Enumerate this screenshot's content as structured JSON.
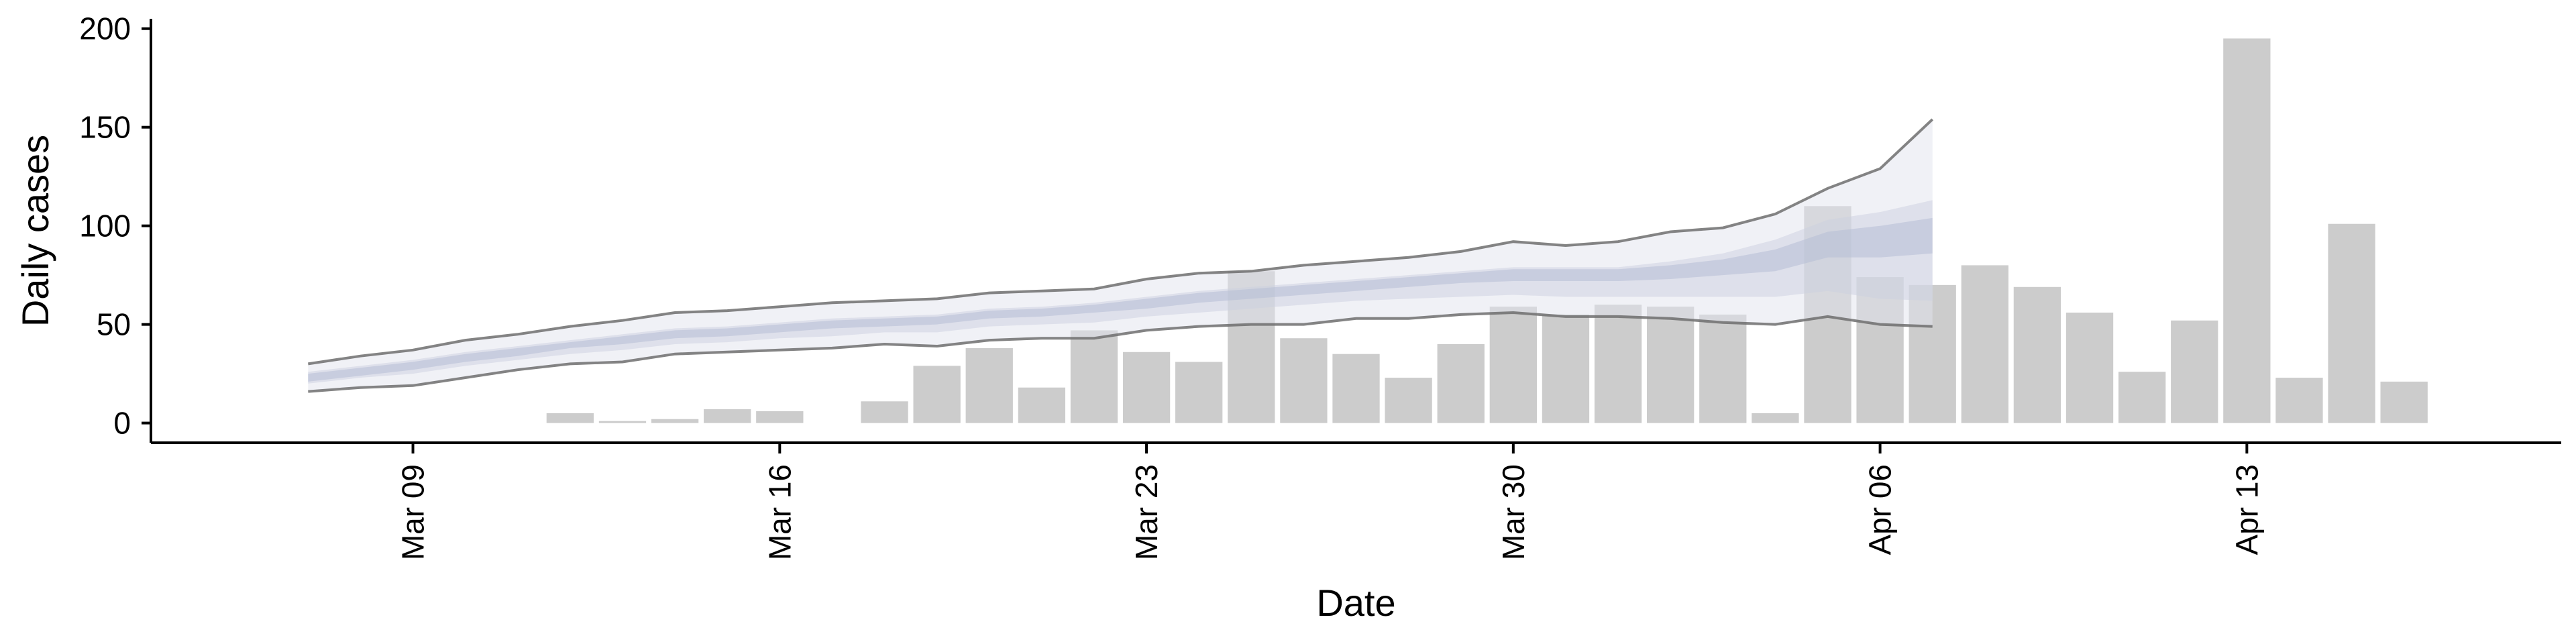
{
  "chart_data": {
    "type": "bar",
    "xlabel": "Date",
    "ylabel": "Daily cases",
    "ylim": [
      -10,
      205
    ],
    "xlim": [
      "2020-03-04",
      "2020-04-19"
    ],
    "y_ticks": [
      0,
      50,
      100,
      150,
      200
    ],
    "x_ticks": [
      {
        "date": "2020-03-09",
        "label": "Mar 09"
      },
      {
        "date": "2020-03-16",
        "label": "Mar 16"
      },
      {
        "date": "2020-03-23",
        "label": "Mar 23"
      },
      {
        "date": "2020-03-30",
        "label": "Mar 30"
      },
      {
        "date": "2020-04-06",
        "label": "Apr 06"
      },
      {
        "date": "2020-04-13",
        "label": "Apr 13"
      }
    ],
    "grid": false,
    "legend": "none",
    "colors": {
      "bars": "#cccccc",
      "band_outer": "#e2e4ee",
      "band_mid": "#ccd0e0",
      "band_inner": "#b7bdd6",
      "bound_line": "#6e6e6e"
    },
    "series": [
      {
        "type": "bar",
        "x": [
          "2020-03-12",
          "2020-03-13",
          "2020-03-14",
          "2020-03-15",
          "2020-03-16",
          "2020-03-18",
          "2020-03-19",
          "2020-03-20",
          "2020-03-21",
          "2020-03-22",
          "2020-03-23",
          "2020-03-24",
          "2020-03-25",
          "2020-03-26",
          "2020-03-27",
          "2020-03-28",
          "2020-03-29",
          "2020-03-30",
          "2020-03-31",
          "2020-04-01",
          "2020-04-02",
          "2020-04-03",
          "2020-04-04",
          "2020-04-05",
          "2020-04-06",
          "2020-04-07",
          "2020-04-08",
          "2020-04-09",
          "2020-04-10",
          "2020-04-11",
          "2020-04-12",
          "2020-04-13",
          "2020-04-14",
          "2020-04-15",
          "2020-04-16"
        ],
        "values": [
          5,
          1,
          2,
          7,
          6,
          11,
          29,
          38,
          18,
          47,
          36,
          31,
          77,
          43,
          35,
          23,
          40,
          59,
          55,
          60,
          59,
          55,
          5,
          110,
          74,
          70,
          80,
          69,
          56,
          26,
          52,
          195,
          23,
          101,
          21
        ]
      },
      {
        "type": "band",
        "x": [
          "2020-03-07",
          "2020-03-08",
          "2020-03-09",
          "2020-03-10",
          "2020-03-11",
          "2020-03-12",
          "2020-03-13",
          "2020-03-14",
          "2020-03-15",
          "2020-03-16",
          "2020-03-17",
          "2020-03-18",
          "2020-03-19",
          "2020-03-20",
          "2020-03-21",
          "2020-03-22",
          "2020-03-23",
          "2020-03-24",
          "2020-03-25",
          "2020-03-26",
          "2020-03-27",
          "2020-03-28",
          "2020-03-29",
          "2020-03-30",
          "2020-03-31",
          "2020-04-01",
          "2020-04-02",
          "2020-04-03",
          "2020-04-04",
          "2020-04-05",
          "2020-04-06",
          "2020-04-07"
        ],
        "lower95": [
          16,
          18,
          19,
          23,
          27,
          30,
          31,
          35,
          36,
          37,
          38,
          40,
          39,
          42,
          43,
          43,
          47,
          49,
          50,
          50,
          53,
          53,
          55,
          56,
          54,
          54,
          53,
          51,
          50,
          54,
          50,
          49
        ],
        "upper95": [
          30,
          34,
          37,
          42,
          45,
          49,
          52,
          56,
          57,
          59,
          61,
          62,
          63,
          66,
          67,
          68,
          73,
          76,
          77,
          80,
          82,
          84,
          87,
          92,
          90,
          92,
          97,
          99,
          106,
          119,
          129,
          154
        ],
        "lower50": [
          20,
          23,
          25,
          29,
          32,
          35,
          37,
          40,
          41,
          43,
          44,
          46,
          46,
          49,
          50,
          51,
          54,
          56,
          58,
          60,
          62,
          63,
          64,
          65,
          64,
          64,
          64,
          64,
          64,
          67,
          63,
          62
        ],
        "upper50": [
          26,
          29,
          32,
          36,
          39,
          42,
          45,
          48,
          49,
          51,
          53,
          54,
          55,
          58,
          59,
          61,
          64,
          67,
          69,
          71,
          73,
          75,
          77,
          79,
          79,
          79,
          82,
          86,
          93,
          103,
          107,
          113
        ],
        "lower20": [
          21,
          24,
          27,
          31,
          34,
          38,
          40,
          43,
          44,
          46,
          48,
          49,
          50,
          53,
          54,
          56,
          58,
          61,
          63,
          65,
          67,
          69,
          71,
          72,
          72,
          72,
          73,
          75,
          77,
          84,
          84,
          86
        ],
        "upper20": [
          25,
          28,
          31,
          35,
          38,
          41,
          44,
          47,
          48,
          50,
          52,
          53,
          54,
          57,
          58,
          60,
          63,
          66,
          68,
          70,
          72,
          74,
          76,
          78,
          78,
          78,
          80,
          83,
          88,
          97,
          100,
          104
        ]
      }
    ]
  }
}
